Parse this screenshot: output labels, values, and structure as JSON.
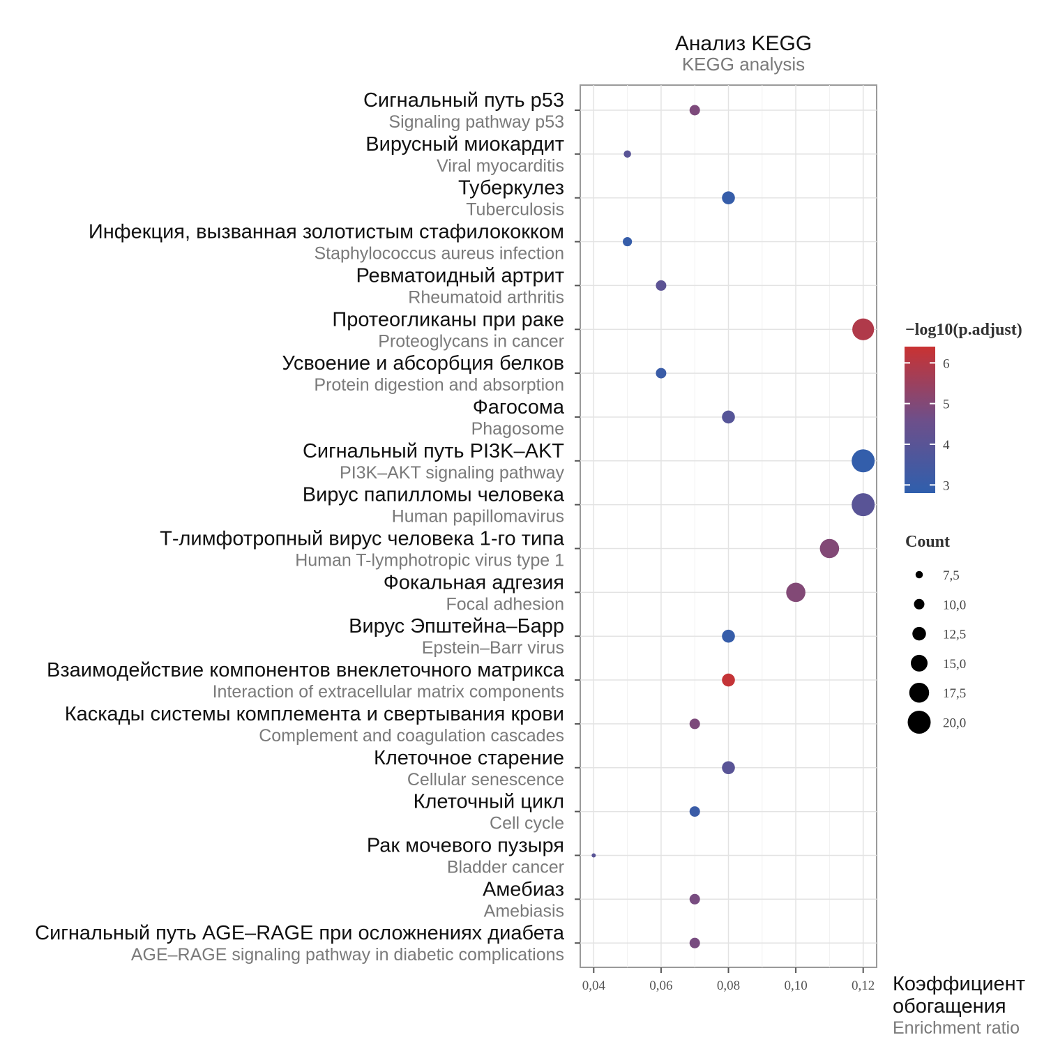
{
  "chart_data": {
    "type": "scatter",
    "title": "Анализ KEGG",
    "subtitle": "KEGG analysis",
    "xlabel_ru_line1": "Коэффициент",
    "xlabel_ru_line2": "обогащения",
    "xlabel_en": "Enrichment ratio",
    "xlim": [
      0.036,
      0.124
    ],
    "xticks": [
      0.04,
      0.06,
      0.08,
      0.1,
      0.12
    ],
    "xtick_labels": [
      "0,04",
      "0,06",
      "0,08",
      "0,10",
      "0,12"
    ],
    "grid": true,
    "color_legend": {
      "title": "−log10(p.adjust)",
      "ticks": [
        6,
        5,
        4,
        3
      ],
      "range": [
        2.8,
        6.4
      ],
      "low_color": "#2f5fad",
      "mid_color": "#6e4f8a",
      "high_color": "#c93232"
    },
    "size_legend": {
      "title": "Count",
      "values": [
        7.5,
        10.0,
        12.5,
        15.0,
        17.5,
        20.0
      ],
      "labels": [
        "7,5",
        "10,0",
        "12,5",
        "15,0",
        "17,5",
        "20,0"
      ]
    },
    "points": [
      {
        "label_ru": "Сигнальный путь p53",
        "label_en": "Signaling pathway p53",
        "x": 0.07,
        "count": 10,
        "neglog10p": 4.9
      },
      {
        "label_ru": "Вирусный миокардит",
        "label_en": "Viral myocarditis",
        "x": 0.05,
        "count": 7.5,
        "neglog10p": 4.0
      },
      {
        "label_ru": "Туберкулез",
        "label_en": "Tuberculosis",
        "x": 0.08,
        "count": 12,
        "neglog10p": 3.0
      },
      {
        "label_ru": "Инфекция, вызванная золотистым стафилококком",
        "label_en": "Staphylococcus aureus infection",
        "x": 0.05,
        "count": 9,
        "neglog10p": 3.0
      },
      {
        "label_ru": "Ревматоидный артрит",
        "label_en": "Rheumatoid arthritis",
        "x": 0.06,
        "count": 10,
        "neglog10p": 4.1
      },
      {
        "label_ru": "Протеогликаны при раке",
        "label_en": "Proteoglycans in cancer",
        "x": 0.12,
        "count": 19,
        "neglog10p": 5.9
      },
      {
        "label_ru": "Усвоение и абсорбция белков",
        "label_en": "Protein digestion and absorption",
        "x": 0.06,
        "count": 10,
        "neglog10p": 3.1
      },
      {
        "label_ru": "Фагосома",
        "label_en": "Phagosome",
        "x": 0.08,
        "count": 12,
        "neglog10p": 3.9
      },
      {
        "label_ru": "Сигнальный путь PI3K–AKT",
        "label_en": "PI3K–AKT signaling pathway",
        "x": 0.12,
        "count": 20,
        "neglog10p": 2.9
      },
      {
        "label_ru": "Вирус папилломы человека",
        "label_en": "Human papillomavirus",
        "x": 0.12,
        "count": 20,
        "neglog10p": 4.0
      },
      {
        "label_ru": "Т-лимфотропный вирус человека 1-го типа",
        "label_en": "Human T-lymphotropic virus type 1",
        "x": 0.11,
        "count": 17,
        "neglog10p": 5.0
      },
      {
        "label_ru": "Фокальная адгезия",
        "label_en": "Focal adhesion",
        "x": 0.1,
        "count": 17,
        "neglog10p": 5.0
      },
      {
        "label_ru": "Вирус Эпштейна–Барр",
        "label_en": "Epstein–Barr virus",
        "x": 0.08,
        "count": 12,
        "neglog10p": 3.0
      },
      {
        "label_ru": "Взаимодействие компонентов внеклеточного  матрикса",
        "label_en": "Interaction of extracellular matrix components",
        "x": 0.08,
        "count": 12,
        "neglog10p": 6.3
      },
      {
        "label_ru": "Каскады системы комплемента и свертывания крови",
        "label_en": "Complement and coagulation cascades",
        "x": 0.07,
        "count": 10,
        "neglog10p": 4.9
      },
      {
        "label_ru": "Клеточное старение",
        "label_en": "Cellular senescence",
        "x": 0.08,
        "count": 12,
        "neglog10p": 4.0
      },
      {
        "label_ru": "Клеточный цикл",
        "label_en": "Cell cycle",
        "x": 0.07,
        "count": 10,
        "neglog10p": 3.1
      },
      {
        "label_ru": "Рак мочевого пузыря",
        "label_en": "Bladder cancer",
        "x": 0.04,
        "count": 5,
        "neglog10p": 4.0
      },
      {
        "label_ru": "Амебиаз",
        "label_en": "Amebiasis",
        "x": 0.07,
        "count": 10,
        "neglog10p": 4.8
      },
      {
        "label_ru": "Сигнальный путь AGE–RAGE при осложнениях диабета",
        "label_en": "AGE–RAGE signaling pathway in diabetic complications",
        "x": 0.07,
        "count": 10,
        "neglog10p": 4.8
      }
    ]
  }
}
